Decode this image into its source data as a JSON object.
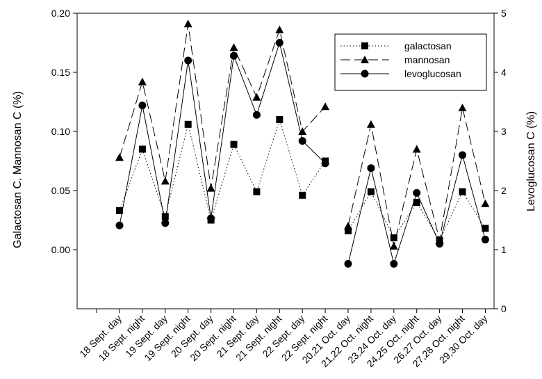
{
  "chart_data": {
    "type": "line",
    "categories": [
      "18 Sept. day",
      "18 Sept. night",
      "19 Sept. day",
      "19 Sept. night",
      "20 Sept. day",
      "20 Sept. night",
      "21 Sept. day",
      "21 Sept. night",
      "22 Sept. day",
      "22 Sept. night",
      "20,21 Oct. day",
      "21,22 Oct. night",
      "23,24 Oct. day",
      "24,25 Oct. night",
      "26,27 Oct. day",
      "27,28 Oct. night",
      "29,30 Oct. day"
    ],
    "y_left": {
      "label": "Galactosan C, Mannosan C (%)",
      "range": [
        -0.05,
        0.2
      ],
      "ticks": [
        0.0,
        0.05,
        0.1,
        0.15,
        0.2
      ],
      "tick_labels": [
        "0.00",
        "0.05",
        "0.10",
        "0.15",
        "0.20"
      ]
    },
    "y_right": {
      "label": "Levoglucosan C (%)",
      "range": [
        0,
        5
      ],
      "ticks": [
        0,
        1,
        2,
        3,
        4,
        5
      ],
      "tick_labels": [
        "0",
        "1",
        "2",
        "3",
        "4",
        "5"
      ]
    },
    "grid": false,
    "legend_position": "top-right",
    "series": [
      {
        "name": "galactosan",
        "axis": "left",
        "marker": "square",
        "line_style": "dotted",
        "values": [
          0.033,
          0.085,
          0.028,
          0.106,
          0.025,
          0.089,
          0.049,
          0.11,
          0.046,
          0.075,
          0.016,
          0.049,
          0.01,
          0.04,
          0.008,
          0.049,
          0.018
        ]
      },
      {
        "name": "mannosan",
        "axis": "left",
        "marker": "triangle",
        "line_style": "dashed",
        "values": [
          0.078,
          0.142,
          0.058,
          0.191,
          0.052,
          0.171,
          0.129,
          0.186,
          0.1,
          0.121,
          0.02,
          0.106,
          0.003,
          0.085,
          0.008,
          0.12,
          0.039
        ]
      },
      {
        "name": "levoglucosan",
        "axis": "right",
        "marker": "circle",
        "line_style": "solid",
        "values": [
          1.41,
          3.44,
          1.45,
          4.2,
          1.53,
          4.28,
          3.28,
          4.5,
          2.84,
          2.46,
          0.76,
          2.38,
          0.76,
          1.96,
          1.1,
          2.6,
          1.17
        ]
      }
    ]
  }
}
